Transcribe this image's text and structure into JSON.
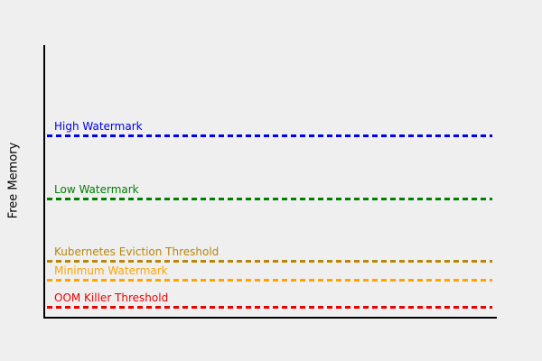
{
  "chart_data": {
    "type": "line",
    "title": "",
    "xlabel": "",
    "ylabel": "Free Memory",
    "grid": false,
    "legend": "none",
    "axes_shown": [
      "left",
      "bottom"
    ],
    "x_tick_labels": [],
    "y_tick_labels": [],
    "series": [
      {
        "name": "High Watermark",
        "color": "#0000ee",
        "linestyle": "dashed",
        "level_fraction_of_axis": 0.668
      },
      {
        "name": "Low Watermark",
        "color": "#008000",
        "linestyle": "dashed",
        "level_fraction_of_axis": 0.435
      },
      {
        "name": "Kubernetes Eviction Threshold",
        "color": "#b8860b",
        "linestyle": "dashed",
        "level_fraction_of_axis": 0.206
      },
      {
        "name": "Minimum Watermark",
        "color": "#ffa500",
        "linestyle": "dashed",
        "level_fraction_of_axis": 0.136
      },
      {
        "name": "OOM Killer Threshold",
        "color": "#ee0000",
        "linestyle": "dashed",
        "level_fraction_of_axis": 0.037
      }
    ]
  },
  "colors": {
    "background": "#efefef",
    "axis": "#000000",
    "ylabel_text": "#000000"
  }
}
